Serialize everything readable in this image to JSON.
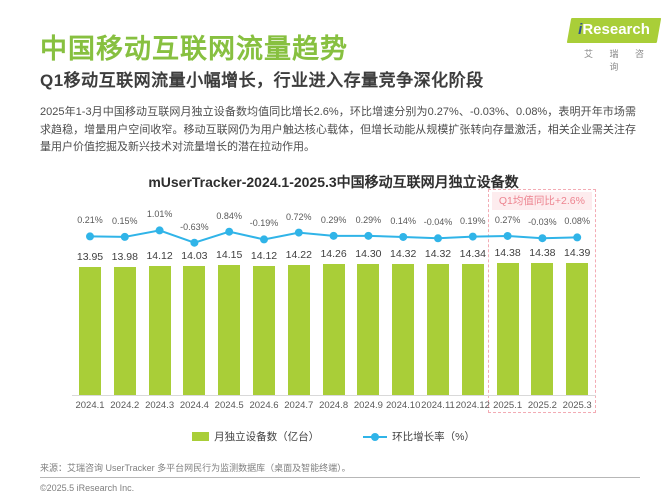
{
  "page": {
    "title": "中国移动互联网流量趋势",
    "subtitle": "Q1移动互联网流量小幅增长，行业进入存量竞争深化阶段",
    "summary": "2025年1-3月中国移动互联网月独立设备数均值同比增长2.6%，环比增速分别为0.27%、-0.03%、0.08%，表明开年市场需求趋稳，增量用户空间收窄。移动互联网仍为用户触达核心载体，但增长动能从规模扩张转向存量激活，相关企业需关注存量用户价值挖掘及新兴技术对流量增长的潜在拉动作用。"
  },
  "logo": {
    "brand_i": "i",
    "brand_rest": "Research",
    "subtext": "艾 瑞 咨 询"
  },
  "chart_data": {
    "type": "bar+line",
    "title": "mUserTracker-2024.1-2025.3中国移动互联网月独立设备数",
    "categories": [
      "2024.1",
      "2024.2",
      "2024.3",
      "2024.4",
      "2024.5",
      "2024.6",
      "2024.7",
      "2024.8",
      "2024.9",
      "2024.10",
      "2024.11",
      "2024.12",
      "2025.1",
      "2025.2",
      "2025.3"
    ],
    "series": [
      {
        "name": "月独立设备数（亿台）",
        "type": "bar",
        "color": "#a9ce38",
        "values": [
          13.95,
          13.98,
          14.12,
          14.03,
          14.15,
          14.12,
          14.22,
          14.26,
          14.3,
          14.32,
          14.32,
          14.34,
          14.38,
          14.38,
          14.39
        ],
        "labels": [
          "13.95",
          "13.98",
          "14.12",
          "14.03",
          "14.15",
          "14.12",
          "14.22",
          "14.26",
          "14.30",
          "14.32",
          "14.32",
          "14.34",
          "14.38",
          "14.38",
          "14.39"
        ]
      },
      {
        "name": "环比增长率（%）",
        "type": "line",
        "color": "#30b4e8",
        "values": [
          0.21,
          0.15,
          1.01,
          -0.63,
          0.84,
          -0.19,
          0.72,
          0.29,
          0.29,
          0.14,
          -0.04,
          0.19,
          0.27,
          -0.03,
          0.08
        ],
        "labels": [
          "0.21%",
          "0.15%",
          "1.01%",
          "-0.63%",
          "0.84%",
          "-0.19%",
          "0.72%",
          "0.29%",
          "0.29%",
          "0.14%",
          "-0.04%",
          "0.19%",
          "0.27%",
          "-0.03%",
          "0.08%"
        ]
      }
    ],
    "annotation": {
      "text": "Q1均值同比+2.6%",
      "highlight_start": "2025.1",
      "highlight_end": "2025.3",
      "text_color": "#ed8490",
      "bg": "#fdecee",
      "border": "#f3abb4"
    },
    "legend_position": "bottom",
    "ylim_bar": [
      0,
      15
    ],
    "grid": false
  },
  "footer": {
    "source": "来源：艾瑞咨询 UserTracker 多平台网民行为监测数据库（桌面及智能终端）。",
    "copyright": "©2025.5 iResearch Inc."
  },
  "colors": {
    "title_green": "#87c040",
    "bar_green": "#a9ce38",
    "line_blue": "#30b4e8",
    "accent_pink": "#ed8490"
  }
}
